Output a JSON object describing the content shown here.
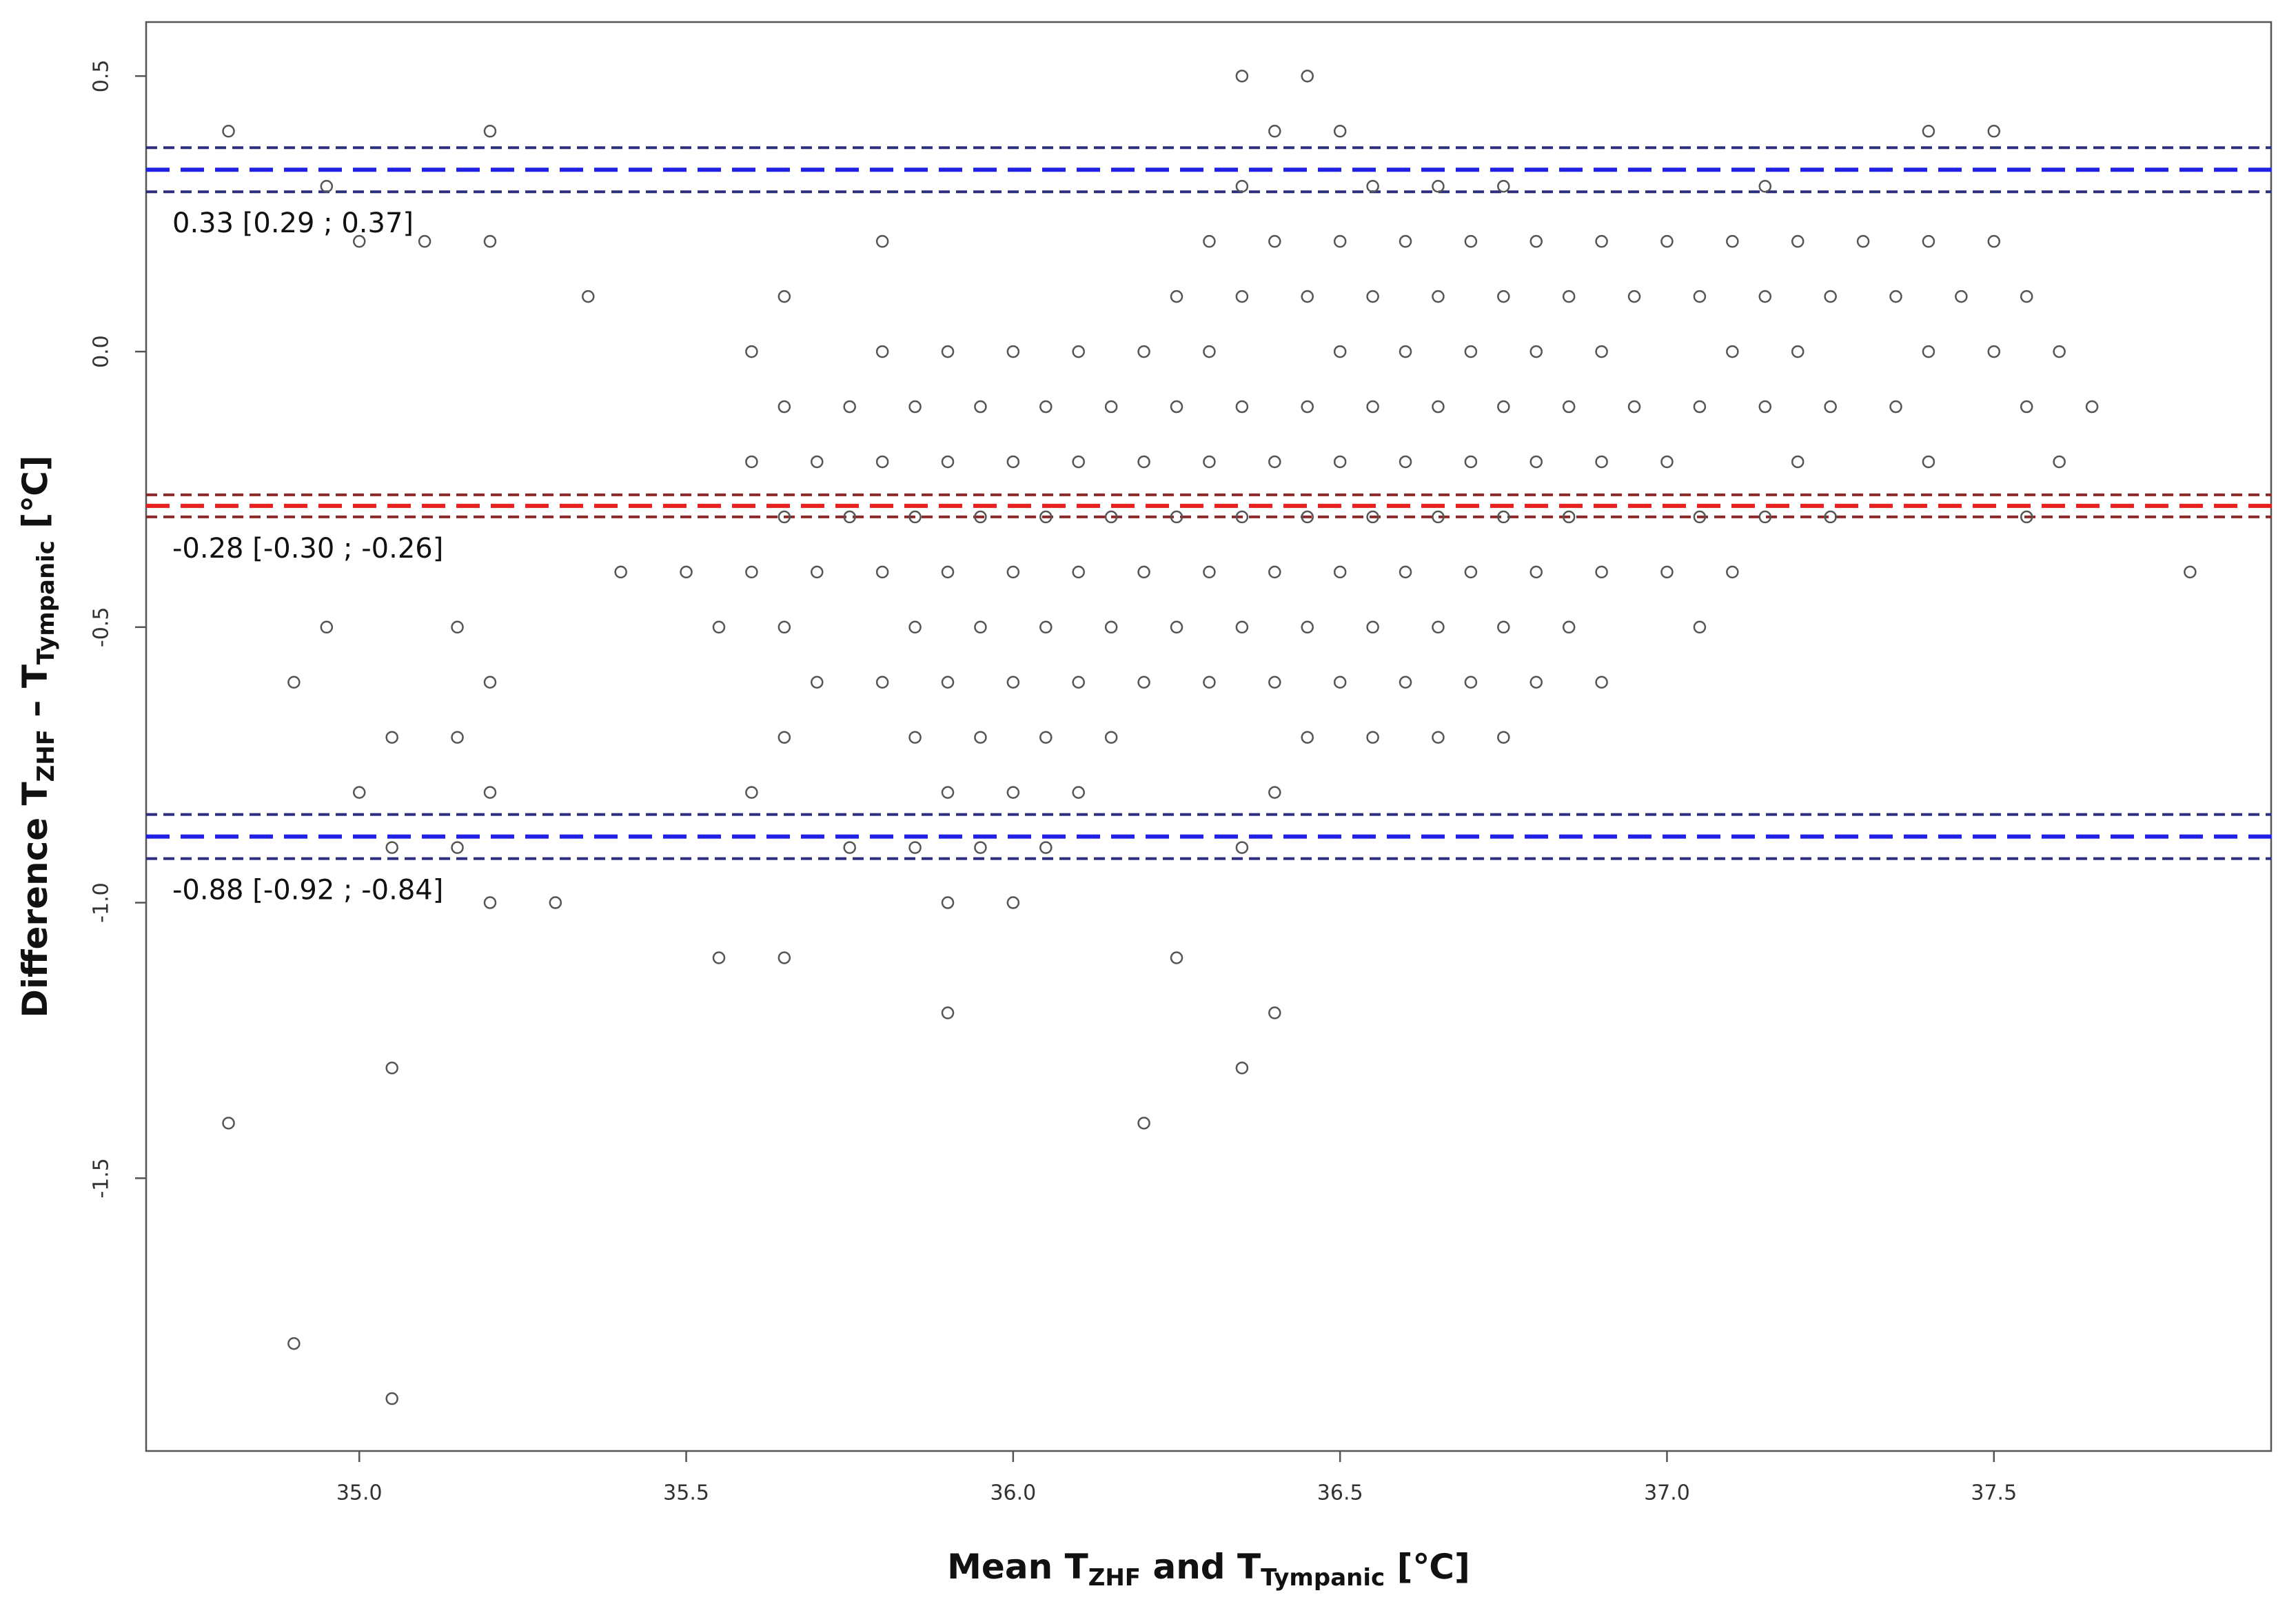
{
  "chart_data": {
    "type": "scatter",
    "xlabel": [
      "Mean T",
      "ZHF",
      " and T",
      "Tympanic",
      " [℃]"
    ],
    "ylabel": [
      "Difference T",
      "ZHF",
      " – T",
      "Tympanic",
      " [℃]"
    ],
    "xlim": [
      34.674,
      37.924
    ],
    "ylim": [
      -1.995,
      0.598
    ],
    "xticks": [
      {
        "value": 35,
        "label": "35.0"
      },
      35.5,
      {
        "value": 36,
        "label": "36.0"
      },
      36.5,
      {
        "value": 37,
        "label": "37.0"
      },
      37.5
    ],
    "yticks": [
      0.5,
      {
        "value": 0,
        "label": "0.0"
      },
      -0.5,
      {
        "value": -1,
        "label": "-1.0"
      },
      -1.5
    ],
    "color": "#555555",
    "lines": [
      {
        "value": 0.33,
        "lower": 0.29,
        "upper": 0.37,
        "label": "0.33 [0.29 ; 0.37]",
        "color": "#1f1fe6",
        "ci_color": "#2e2e80"
      },
      {
        "value": -0.28,
        "lower": -0.3,
        "upper": -0.26,
        "label": "-0.28 [-0.30 ; -0.26]",
        "color": "#e61f1f",
        "ci_color": "#8a2a2a"
      },
      {
        "value": -0.88,
        "lower": -0.92,
        "upper": -0.84,
        "label": "-0.88 [-0.92 ; -0.84]",
        "color": "#1f1fe6",
        "ci_color": "#2e2e80"
      }
    ],
    "x": [
      36.35,
      36.45,
      34.8,
      35.2,
      36.4,
      36.5,
      37.4,
      37.5,
      34.95,
      36.35,
      36.55,
      36.65,
      36.75,
      37.15,
      35.0,
      35.1,
      35.2,
      35.8,
      36.3,
      36.4,
      36.5,
      36.6,
      36.7,
      36.8,
      36.9,
      37.0,
      37.1,
      37.2,
      37.3,
      37.4,
      37.5,
      35.35,
      35.65,
      36.25,
      36.35,
      36.45,
      36.55,
      36.65,
      36.75,
      36.85,
      36.95,
      37.05,
      37.15,
      37.25,
      37.35,
      37.45,
      37.55,
      35.6,
      35.8,
      35.9,
      36.0,
      36.1,
      36.2,
      36.3,
      36.5,
      36.6,
      36.7,
      36.8,
      36.9,
      37.1,
      37.2,
      37.4,
      37.5,
      37.6,
      35.65,
      35.75,
      35.85,
      35.95,
      36.05,
      36.15,
      36.25,
      36.35,
      36.45,
      36.55,
      36.65,
      36.75,
      36.85,
      36.95,
      37.05,
      37.15,
      37.25,
      37.35,
      37.55,
      37.65,
      35.6,
      35.7,
      35.8,
      35.9,
      36.0,
      36.1,
      36.2,
      36.3,
      36.4,
      36.5,
      36.6,
      36.7,
      36.8,
      36.9,
      37.0,
      37.2,
      37.4,
      37.6,
      35.65,
      35.75,
      35.85,
      35.95,
      36.05,
      36.15,
      36.25,
      36.35,
      36.45,
      36.55,
      36.65,
      36.75,
      36.85,
      37.05,
      37.15,
      37.25,
      37.55,
      35.4,
      35.5,
      35.6,
      35.7,
      35.8,
      35.9,
      36.0,
      36.1,
      36.2,
      36.3,
      36.4,
      36.5,
      36.6,
      36.7,
      36.8,
      36.9,
      37.0,
      37.1,
      37.8,
      34.95,
      35.15,
      35.55,
      35.65,
      35.85,
      35.95,
      36.05,
      36.15,
      36.25,
      36.35,
      36.45,
      36.55,
      36.65,
      36.75,
      36.85,
      37.05,
      34.9,
      35.2,
      35.7,
      35.8,
      35.9,
      36.0,
      36.1,
      36.2,
      36.3,
      36.4,
      36.5,
      36.6,
      36.7,
      36.8,
      36.9,
      35.05,
      35.15,
      35.65,
      35.85,
      35.95,
      36.05,
      36.15,
      36.45,
      36.55,
      36.65,
      36.75,
      35.0,
      35.2,
      35.6,
      35.9,
      36.0,
      36.1,
      36.4,
      35.05,
      35.15,
      35.75,
      35.85,
      35.95,
      36.05,
      36.35,
      35.2,
      35.3,
      35.9,
      36.0,
      35.55,
      35.65,
      36.25,
      35.9,
      36.4,
      35.05,
      36.35,
      34.8,
      36.2,
      34.9,
      35.05
    ],
    "values": [
      0.5,
      0.5,
      0.4,
      0.4,
      0.4,
      0.4,
      0.4,
      0.4,
      0.3,
      0.3,
      0.3,
      0.3,
      0.3,
      0.3,
      0.2,
      0.2,
      0.2,
      0.2,
      0.2,
      0.2,
      0.2,
      0.2,
      0.2,
      0.2,
      0.2,
      0.2,
      0.2,
      0.2,
      0.2,
      0.2,
      0.2,
      0.1,
      0.1,
      0.1,
      0.1,
      0.1,
      0.1,
      0.1,
      0.1,
      0.1,
      0.1,
      0.1,
      0.1,
      0.1,
      0.1,
      0.1,
      0.1,
      0,
      0,
      0,
      0,
      0,
      0,
      0,
      0,
      0,
      0,
      0,
      0,
      0,
      0,
      0,
      0,
      0,
      -0.1,
      -0.1,
      -0.1,
      -0.1,
      -0.1,
      -0.1,
      -0.1,
      -0.1,
      -0.1,
      -0.1,
      -0.1,
      -0.1,
      -0.1,
      -0.1,
      -0.1,
      -0.1,
      -0.1,
      -0.1,
      -0.1,
      -0.1,
      -0.2,
      -0.2,
      -0.2,
      -0.2,
      -0.2,
      -0.2,
      -0.2,
      -0.2,
      -0.2,
      -0.2,
      -0.2,
      -0.2,
      -0.2,
      -0.2,
      -0.2,
      -0.2,
      -0.2,
      -0.2,
      -0.3,
      -0.3,
      -0.3,
      -0.3,
      -0.3,
      -0.3,
      -0.3,
      -0.3,
      -0.3,
      -0.3,
      -0.3,
      -0.3,
      -0.3,
      -0.3,
      -0.3,
      -0.3,
      -0.3,
      -0.4,
      -0.4,
      -0.4,
      -0.4,
      -0.4,
      -0.4,
      -0.4,
      -0.4,
      -0.4,
      -0.4,
      -0.4,
      -0.4,
      -0.4,
      -0.4,
      -0.4,
      -0.4,
      -0.4,
      -0.4,
      -0.4,
      -0.5,
      -0.5,
      -0.5,
      -0.5,
      -0.5,
      -0.5,
      -0.5,
      -0.5,
      -0.5,
      -0.5,
      -0.5,
      -0.5,
      -0.5,
      -0.5,
      -0.5,
      -0.5,
      -0.6,
      -0.6,
      -0.6,
      -0.6,
      -0.6,
      -0.6,
      -0.6,
      -0.6,
      -0.6,
      -0.6,
      -0.6,
      -0.6,
      -0.6,
      -0.6,
      -0.6,
      -0.7,
      -0.7,
      -0.7,
      -0.7,
      -0.7,
      -0.7,
      -0.7,
      -0.7,
      -0.7,
      -0.7,
      -0.7,
      -0.8,
      -0.8,
      -0.8,
      -0.8,
      -0.8,
      -0.8,
      -0.8,
      -0.9,
      -0.9,
      -0.9,
      -0.9,
      -0.9,
      -0.9,
      -0.9,
      -1.0,
      -1.0,
      -1.0,
      -1.0,
      -1.1,
      -1.1,
      -1.1,
      -1.2,
      -1.2,
      -1.3,
      -1.3,
      -1.4,
      -1.4,
      -1.8,
      -1.9
    ]
  }
}
